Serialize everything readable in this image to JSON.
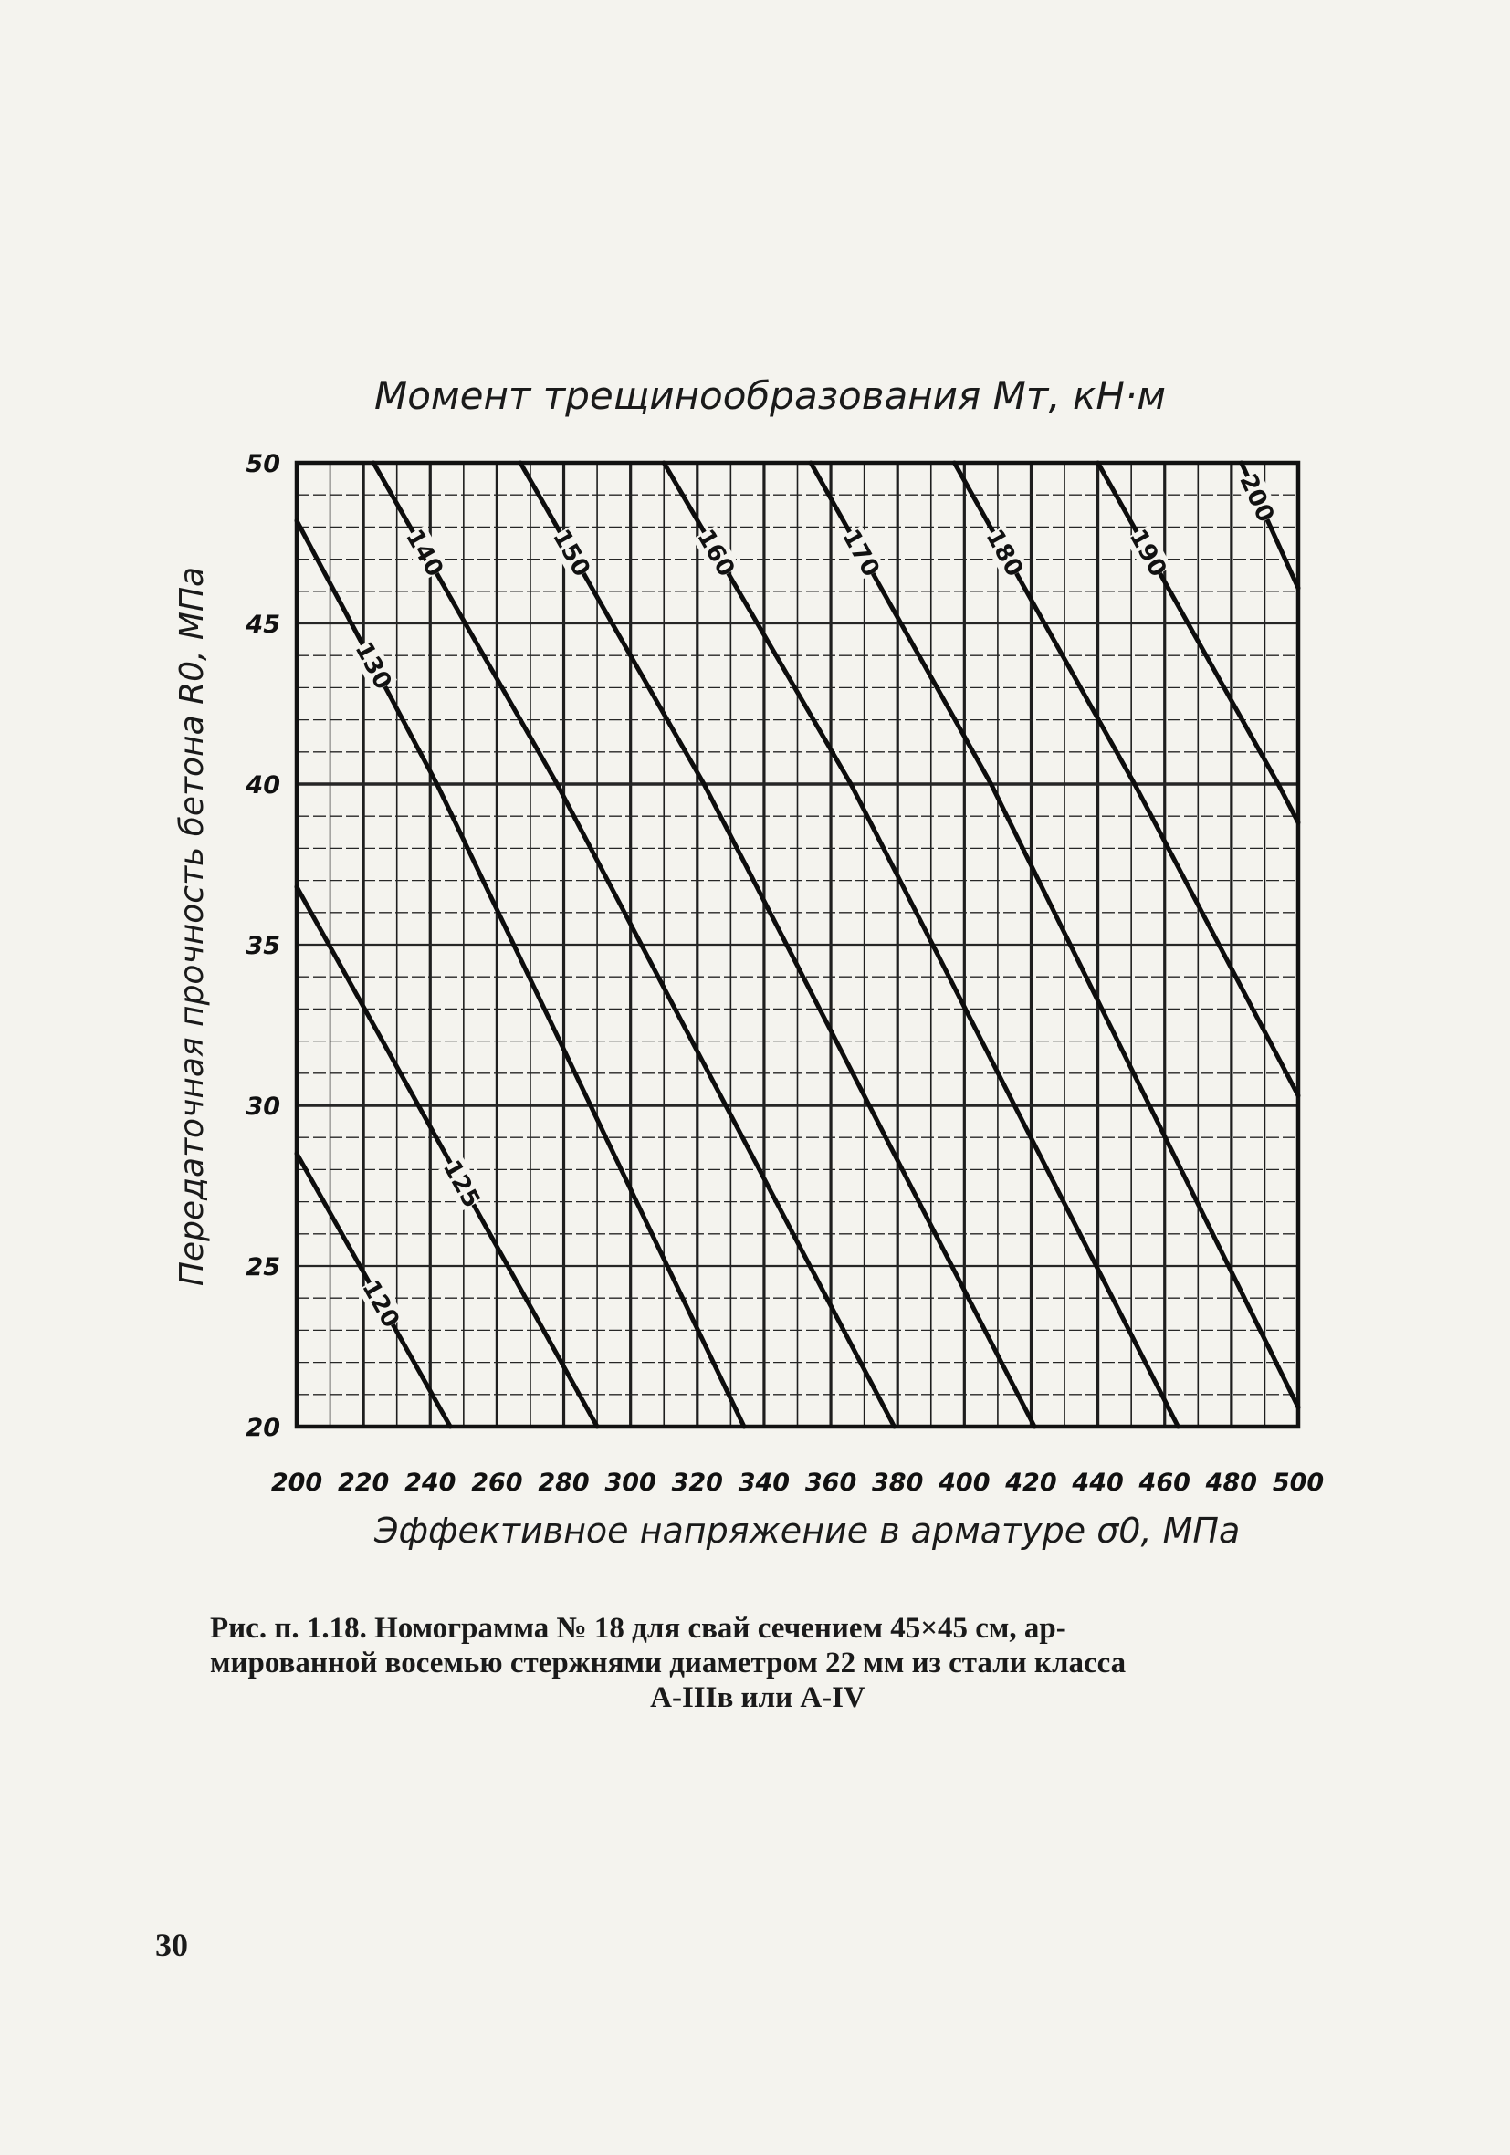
{
  "chart_data": {
    "type": "line",
    "title": "Момент трещинообразования Mт, кН·м",
    "xlabel": "Эффективное напряжение в арматуре σ0, МПа",
    "ylabel": "Передаточная прочность бетона R0, МПа",
    "xlim": [
      200,
      500
    ],
    "ylim": [
      20,
      50
    ],
    "xticks": [
      "200",
      "220",
      "240",
      "260",
      "280",
      "300",
      "320",
      "340",
      "360",
      "380",
      "400",
      "420",
      "440",
      "460",
      "480",
      "500"
    ],
    "yticks": [
      "20",
      "25",
      "30",
      "35",
      "40",
      "45",
      "50"
    ],
    "grid": true,
    "series": [
      {
        "name": "120",
        "points": [
          [
            200,
            28.5
          ],
          [
            246,
            20
          ]
        ]
      },
      {
        "name": "125",
        "points": [
          [
            200,
            36.8
          ],
          [
            290,
            20
          ]
        ]
      },
      {
        "name": "130",
        "points": [
          [
            200,
            48.2
          ],
          [
            242,
            40
          ],
          [
            334,
            20
          ]
        ]
      },
      {
        "name": "140",
        "points": [
          [
            223,
            50
          ],
          [
            278,
            40
          ],
          [
            379,
            20
          ]
        ]
      },
      {
        "name": "150",
        "points": [
          [
            267,
            50
          ],
          [
            322,
            40
          ],
          [
            421,
            20
          ]
        ]
      },
      {
        "name": "160",
        "points": [
          [
            310,
            50
          ],
          [
            366,
            40
          ],
          [
            464,
            20
          ]
        ]
      },
      {
        "name": "170",
        "points": [
          [
            354,
            50
          ],
          [
            408,
            40
          ],
          [
            500,
            20.6
          ]
        ]
      },
      {
        "name": "180",
        "points": [
          [
            397,
            50
          ],
          [
            451,
            40
          ],
          [
            500,
            30.3
          ]
        ]
      },
      {
        "name": "190",
        "points": [
          [
            440,
            50
          ],
          [
            494,
            40
          ],
          [
            500,
            38.8
          ]
        ]
      },
      {
        "name": "200",
        "points": [
          [
            483,
            50
          ],
          [
            500,
            46.1
          ]
        ]
      }
    ]
  },
  "caption": {
    "line1": "Рис. п. 1.18. Номограмма № 18 для свай сечением 45×45 см, ар-",
    "line2": "мированной восемью стержнями диаметром 22 мм из стали класса",
    "line3": "А-IIIв или А-IV"
  },
  "page_number": "30"
}
